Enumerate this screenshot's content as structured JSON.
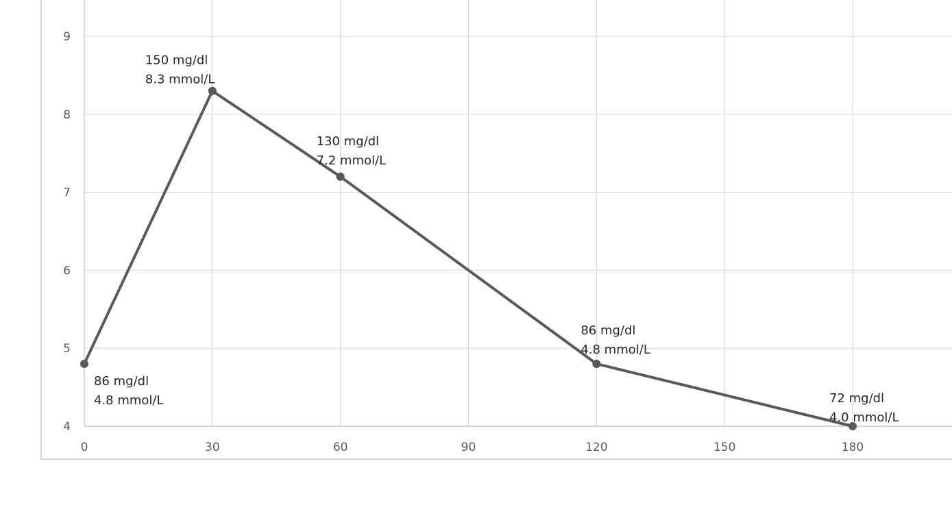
{
  "chart_data": {
    "type": "line",
    "title": "",
    "xlabel": "",
    "ylabel": "",
    "x_ticks": [
      "0",
      "30",
      "60",
      "90",
      "120",
      "150",
      "180"
    ],
    "y_ticks": [
      "4",
      "5",
      "6",
      "7",
      "8",
      "9"
    ],
    "xlim": [
      0,
      180
    ],
    "ylim": [
      4,
      9
    ],
    "grid": true,
    "legend": "none",
    "series": [
      {
        "color": "#595959",
        "points": [
          {
            "x": 0,
            "y": 4.8,
            "label_mgdl": "86 mg/dl",
            "label_mmol": "4.8 mmol/L"
          },
          {
            "x": 30,
            "y": 8.3,
            "label_mgdl": "150 mg/dl",
            "label_mmol": "8.3 mmol/L"
          },
          {
            "x": 60,
            "y": 7.2,
            "label_mgdl": "130 mg/dl",
            "label_mmol": "7.2 mmol/L"
          },
          {
            "x": 120,
            "y": 4.8,
            "label_mgdl": "86 mg/dl",
            "label_mmol": "4.8 mmol/L"
          },
          {
            "x": 180,
            "y": 4.0,
            "label_mgdl": "72 mg/dl",
            "label_mmol": "4.0 mmol/L"
          }
        ]
      }
    ]
  }
}
